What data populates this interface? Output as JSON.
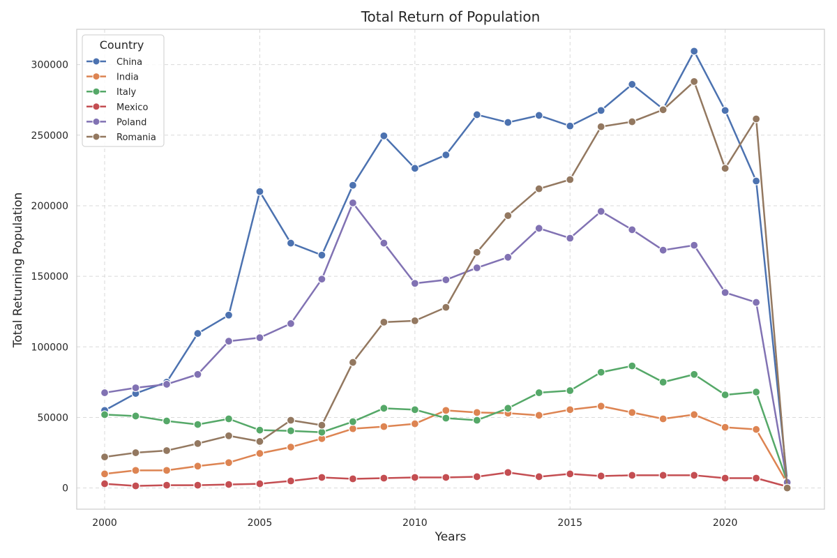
{
  "chart_data": {
    "type": "line",
    "title": "Total Return of Population",
    "xlabel": "Years",
    "ylabel": "Total Returning Population",
    "x": [
      2000,
      2001,
      2002,
      2003,
      2004,
      2005,
      2006,
      2007,
      2008,
      2009,
      2010,
      2011,
      2012,
      2013,
      2014,
      2015,
      2016,
      2017,
      2018,
      2019,
      2020,
      2021,
      2022
    ],
    "xlim": [
      1999.1,
      2023.2
    ],
    "ylim": [
      -15000,
      325000
    ],
    "x_ticks": [
      2000,
      2005,
      2010,
      2015,
      2020
    ],
    "y_ticks": [
      0,
      50000,
      100000,
      150000,
      200000,
      250000,
      300000
    ],
    "x_tick_labels": [
      "2000",
      "2005",
      "2010",
      "2015",
      "2020"
    ],
    "y_tick_labels": [
      "0",
      "50000",
      "100000",
      "150000",
      "200000",
      "250000",
      "300000"
    ],
    "grid": true,
    "legend": {
      "title": "Country",
      "placement": "top-left"
    },
    "series": [
      {
        "name": "China",
        "color": "#4c72b0",
        "values": [
          55000,
          67000,
          75000,
          109500,
          122500,
          210000,
          173500,
          165000,
          214500,
          249500,
          226500,
          236000,
          264500,
          259000,
          264000,
          256500,
          267500,
          286000,
          268500,
          309500,
          267500,
          217500,
          5000
        ]
      },
      {
        "name": "India",
        "color": "#dd8452",
        "values": [
          10000,
          12500,
          12500,
          15500,
          18000,
          24500,
          29000,
          35000,
          42000,
          43500,
          45500,
          55000,
          53500,
          53000,
          51500,
          55500,
          58000,
          53500,
          49000,
          52000,
          43000,
          41500,
          3500
        ]
      },
      {
        "name": "Italy",
        "color": "#55a868",
        "values": [
          52000,
          51000,
          47500,
          45000,
          49000,
          41000,
          40500,
          39500,
          47000,
          56500,
          55500,
          49500,
          48000,
          56500,
          67500,
          69000,
          82000,
          86500,
          75000,
          80500,
          66000,
          68000,
          4500
        ]
      },
      {
        "name": "Mexico",
        "color": "#c44e52",
        "values": [
          3000,
          1500,
          2000,
          2000,
          2500,
          3000,
          5000,
          7500,
          6500,
          7000,
          7500,
          7500,
          8000,
          11000,
          8000,
          10000,
          8500,
          9000,
          9000,
          9000,
          7000,
          7000,
          1000
        ]
      },
      {
        "name": "Poland",
        "color": "#8172b3",
        "values": [
          67500,
          71000,
          73500,
          80500,
          104000,
          106500,
          116500,
          148000,
          202000,
          173500,
          145000,
          147500,
          156000,
          163500,
          184000,
          177000,
          196000,
          183000,
          168500,
          172000,
          138500,
          131500,
          4000
        ]
      },
      {
        "name": "Romania",
        "color": "#937860",
        "values": [
          22000,
          25000,
          26500,
          31500,
          37000,
          33000,
          48000,
          44500,
          89000,
          117500,
          118500,
          128000,
          167000,
          193000,
          212000,
          218500,
          256000,
          259500,
          268000,
          288000,
          226500,
          261500,
          0
        ]
      }
    ]
  }
}
